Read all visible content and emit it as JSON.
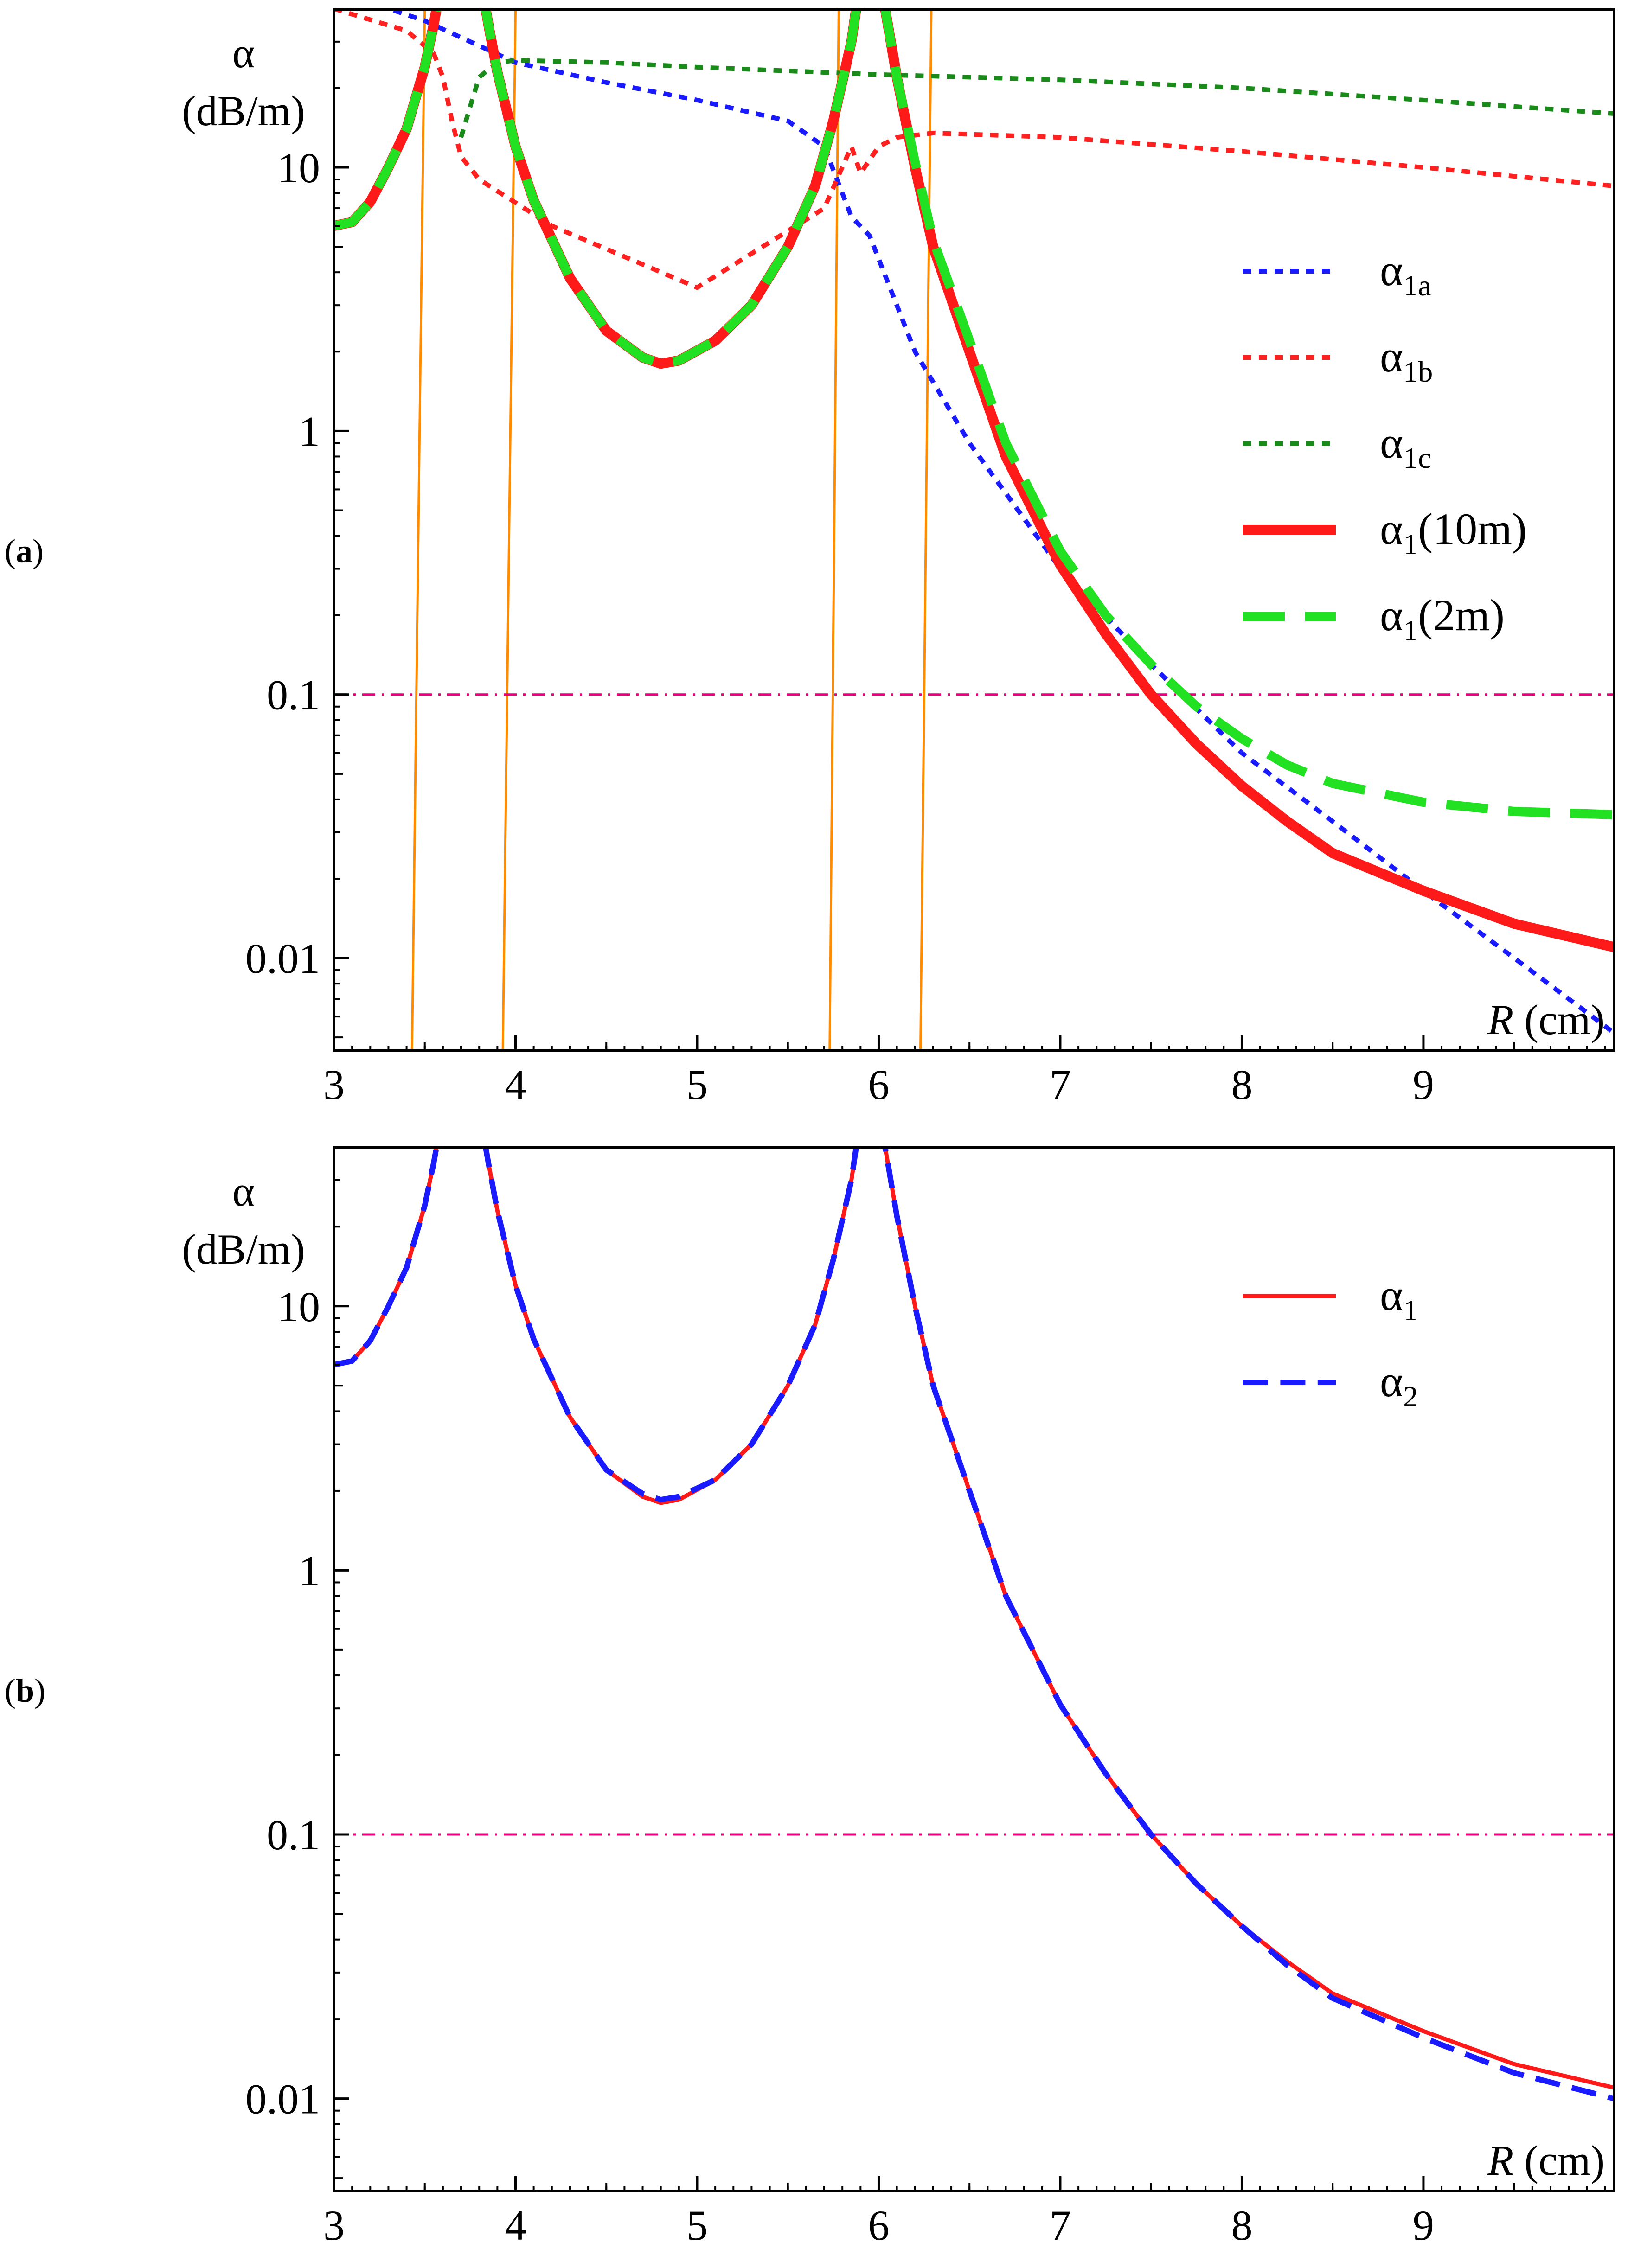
{
  "chart_data": [
    {
      "type": "line",
      "panel_label": "(a)",
      "panel_letter": "a",
      "xlabel_var": "R",
      "xlabel_unit": "(cm)",
      "ylabel_symbol": "α",
      "ylabel_unit": "(dB/m)",
      "x_ticks": [
        "3",
        "4",
        "5",
        "6",
        "7",
        "8",
        "9"
      ],
      "y_ticks": [
        "0.01",
        "0.1",
        "1",
        "10"
      ],
      "xlim": [
        3,
        10.05
      ],
      "ylim_log10": [
        -2.35,
        1.6
      ],
      "yscale": "log",
      "threshold": {
        "value": 0.1,
        "color": "#e8007c",
        "style": "dash-dot"
      },
      "vertical_lines": {
        "color": "#ff8c00",
        "lines": [
          [
            3.43,
            3.5
          ],
          [
            3.93,
            4.0
          ],
          [
            5.73,
            5.78
          ],
          [
            6.23,
            6.29
          ]
        ]
      },
      "series": [
        {
          "name": "α1a",
          "legend_main": "α",
          "legend_sub": "1a",
          "color": "#1a1aff",
          "style": "dotted",
          "width": 10,
          "x": [
            3,
            3.5,
            4,
            4.5,
            5,
            5.5,
            5.7,
            5.85,
            5.95,
            6.2,
            6.5,
            7,
            7.5,
            8,
            8.5,
            9,
            9.5,
            10.05
          ],
          "y": [
            47,
            36,
            25,
            21,
            18,
            15,
            12,
            6.5,
            5.5,
            2.0,
            0.9,
            0.3,
            0.13,
            0.06,
            0.033,
            0.018,
            0.01,
            0.0052
          ]
        },
        {
          "name": "α1b",
          "legend_main": "α",
          "legend_sub": "1b",
          "color": "#ff2020",
          "style": "dotted",
          "width": 10,
          "x": [
            3,
            3.4,
            3.55,
            3.6,
            3.65,
            3.7,
            3.8,
            4.2,
            5,
            5.7,
            5.85,
            5.9,
            6.0,
            6.1,
            6.3,
            7,
            8,
            9,
            10.05
          ],
          "y": [
            40,
            33,
            27,
            22,
            15,
            11,
            9,
            6,
            3.5,
            7,
            12,
            9.5,
            12,
            13,
            13.5,
            13,
            11.5,
            10,
            8.5
          ]
        },
        {
          "name": "α1c",
          "legend_main": "α",
          "legend_sub": "1c",
          "color": "#1a8a1a",
          "style": "dotted",
          "width": 10,
          "x": [
            3.7,
            3.75,
            3.8,
            3.9,
            4.0,
            4.5,
            5,
            6,
            7,
            8,
            9,
            10.05
          ],
          "y": [
            13,
            17,
            22,
            25,
            25.5,
            25,
            24,
            22.5,
            21.5,
            20,
            18,
            16
          ]
        },
        {
          "name": "α1(10m)",
          "legend_main": "α",
          "legend_sub": "1",
          "legend_tail": "(10m)",
          "color": "#ff1a1a",
          "style": "solid",
          "width": 22,
          "x": [
            3,
            3.1,
            3.2,
            3.3,
            3.4,
            3.5,
            3.55,
            3.6,
            3.65,
            3.7,
            3.75,
            3.8,
            3.85,
            3.9,
            4.0,
            4.1,
            4.3,
            4.5,
            4.7,
            4.8,
            4.9,
            5.1,
            5.3,
            5.5,
            5.65,
            5.75,
            5.85,
            5.9,
            5.95,
            6.0,
            6.05,
            6.1,
            6.2,
            6.3,
            6.5,
            6.7,
            7,
            7.25,
            7.5,
            7.75,
            8,
            8.25,
            8.5,
            9,
            9.5,
            10.05
          ],
          "y": [
            6,
            6.2,
            7.4,
            10,
            14,
            24,
            35,
            55,
            90,
            120,
            90,
            55,
            35,
            23,
            12,
            7.5,
            3.8,
            2.4,
            1.9,
            1.8,
            1.85,
            2.2,
            3.0,
            5.0,
            8.5,
            15,
            30,
            52,
            75,
            55,
            35,
            22,
            10,
            5,
            2,
            0.8,
            0.31,
            0.17,
            0.1,
            0.065,
            0.045,
            0.033,
            0.025,
            0.018,
            0.0135,
            0.011
          ]
        },
        {
          "name": "α1(2m)",
          "legend_main": "α",
          "legend_sub": "1",
          "legend_tail": "(2m)",
          "color": "#22e022",
          "style": "dashed",
          "width": 20,
          "x": [
            3,
            3.1,
            3.2,
            3.3,
            3.4,
            3.5,
            3.55,
            3.6,
            3.65,
            3.7,
            3.75,
            3.8,
            3.85,
            3.9,
            4.0,
            4.1,
            4.3,
            4.5,
            4.7,
            4.8,
            4.9,
            5.1,
            5.3,
            5.5,
            5.65,
            5.75,
            5.85,
            5.9,
            5.95,
            6.0,
            6.05,
            6.1,
            6.2,
            6.3,
            6.5,
            6.7,
            7,
            7.25,
            7.5,
            7.75,
            8,
            8.25,
            8.5,
            9,
            9.5,
            10.05
          ],
          "y": [
            6,
            6.2,
            7.4,
            10,
            14,
            24,
            35,
            55,
            90,
            120,
            90,
            55,
            35,
            23,
            12,
            7.5,
            3.8,
            2.4,
            1.9,
            1.8,
            1.85,
            2.2,
            3.0,
            5.0,
            8.5,
            15,
            30,
            52,
            75,
            55,
            35,
            22,
            10.5,
            5.3,
            2.2,
            0.9,
            0.35,
            0.2,
            0.13,
            0.09,
            0.068,
            0.054,
            0.046,
            0.039,
            0.036,
            0.035
          ]
        }
      ]
    },
    {
      "type": "line",
      "panel_label": "(b)",
      "panel_letter": "b",
      "xlabel_var": "R",
      "xlabel_unit": "(cm)",
      "ylabel_symbol": "α",
      "ylabel_unit": "(dB/m)",
      "x_ticks": [
        "3",
        "4",
        "5",
        "6",
        "7",
        "8",
        "9"
      ],
      "y_ticks": [
        "0.01",
        "0.1",
        "1",
        "10"
      ],
      "xlim": [
        3,
        10.05
      ],
      "ylim_log10": [
        -2.35,
        1.6
      ],
      "yscale": "log",
      "threshold": {
        "value": 0.1,
        "color": "#e8007c",
        "style": "dash-dot"
      },
      "series": [
        {
          "name": "α1",
          "legend_main": "α",
          "legend_sub": "1",
          "color": "#ff1a1a",
          "style": "solid",
          "width": 9,
          "x": [
            3,
            3.1,
            3.2,
            3.3,
            3.4,
            3.5,
            3.55,
            3.6,
            3.65,
            3.7,
            3.75,
            3.8,
            3.85,
            3.9,
            4.0,
            4.1,
            4.3,
            4.5,
            4.7,
            4.8,
            4.9,
            5.1,
            5.3,
            5.5,
            5.65,
            5.75,
            5.85,
            5.9,
            5.95,
            6.0,
            6.05,
            6.1,
            6.2,
            6.3,
            6.5,
            6.7,
            7,
            7.25,
            7.5,
            7.75,
            8,
            8.25,
            8.5,
            9,
            9.5,
            10.05
          ],
          "y": [
            6,
            6.2,
            7.4,
            10,
            14,
            24,
            35,
            55,
            90,
            140,
            95,
            55,
            35,
            23,
            12,
            7.5,
            3.8,
            2.4,
            1.9,
            1.8,
            1.85,
            2.2,
            3.0,
            5.0,
            8.5,
            15,
            30,
            52,
            75,
            55,
            35,
            22,
            10,
            5,
            2,
            0.8,
            0.31,
            0.17,
            0.1,
            0.065,
            0.045,
            0.033,
            0.025,
            0.018,
            0.0135,
            0.011
          ]
        },
        {
          "name": "α2",
          "legend_main": "α",
          "legend_sub": "2",
          "color": "#1a1aff",
          "style": "dashed",
          "width": 12,
          "x": [
            3,
            3.1,
            3.2,
            3.3,
            3.4,
            3.5,
            3.55,
            3.6,
            3.65,
            3.7,
            3.75,
            3.8,
            3.85,
            3.9,
            4.0,
            4.1,
            4.3,
            4.5,
            4.7,
            4.8,
            4.9,
            5.1,
            5.3,
            5.5,
            5.65,
            5.75,
            5.85,
            5.9,
            5.95,
            6.0,
            6.05,
            6.1,
            6.2,
            6.3,
            6.5,
            6.7,
            7,
            7.25,
            7.5,
            7.75,
            8,
            8.25,
            8.5,
            9,
            9.5,
            10.05
          ],
          "y": [
            6,
            6.2,
            7.4,
            10,
            14,
            24,
            35,
            55,
            90,
            130,
            95,
            55,
            35,
            23,
            12,
            7.5,
            3.8,
            2.4,
            1.95,
            1.85,
            1.9,
            2.2,
            3.0,
            5.0,
            8.5,
            15,
            30,
            52,
            75,
            55,
            35,
            22,
            10,
            5,
            2,
            0.8,
            0.31,
            0.17,
            0.1,
            0.065,
            0.045,
            0.032,
            0.024,
            0.017,
            0.0125,
            0.01
          ]
        }
      ]
    }
  ]
}
